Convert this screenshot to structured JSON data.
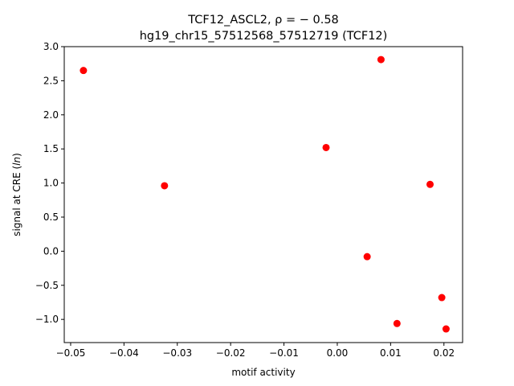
{
  "chart_data": {
    "type": "scatter",
    "title": "TCF12_ASCL2, ρ = − 0.58",
    "subtitle": "hg19_chr15_57512568_57512719 (TCF12)",
    "xlabel": "motif activity",
    "ylabel_prefix": "signal at CRE (",
    "ylabel_italic": "ln",
    "ylabel_suffix": ")",
    "xlim": [
      -0.0512,
      0.0235
    ],
    "ylim": [
      -1.34,
      3.0
    ],
    "xticks": [
      -0.05,
      -0.04,
      -0.03,
      -0.02,
      -0.01,
      0.0,
      0.01,
      0.02
    ],
    "xtick_labels": [
      "−0.05",
      "−0.04",
      "−0.03",
      "−0.02",
      "−0.01",
      "0.00",
      "0.01",
      "0.02"
    ],
    "yticks": [
      -1.0,
      -0.5,
      0.0,
      0.5,
      1.0,
      1.5,
      2.0,
      2.5,
      3.0
    ],
    "ytick_labels": [
      "−1.0",
      "−0.5",
      "0.0",
      "0.5",
      "1.0",
      "1.5",
      "2.0",
      "2.5",
      "3.0"
    ],
    "grid": false,
    "point_color": "#ff0000",
    "points": [
      {
        "x": -0.0476,
        "y": 2.65
      },
      {
        "x": -0.0324,
        "y": 0.96
      },
      {
        "x": -0.0021,
        "y": 1.52
      },
      {
        "x": 0.0082,
        "y": 2.81
      },
      {
        "x": 0.0056,
        "y": -0.08
      },
      {
        "x": 0.0174,
        "y": 0.98
      },
      {
        "x": 0.0112,
        "y": -1.06
      },
      {
        "x": 0.0196,
        "y": -0.68
      },
      {
        "x": 0.0204,
        "y": -1.14
      }
    ]
  }
}
